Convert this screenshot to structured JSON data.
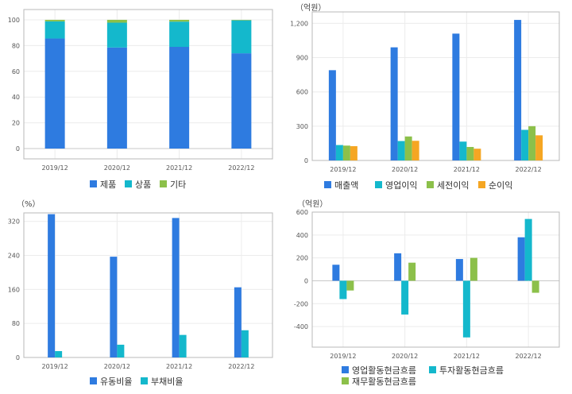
{
  "colors": {
    "blue": "#2e7be0",
    "cyan": "#14b8cc",
    "green": "#8cc04a",
    "orange": "#f5a623"
  },
  "chart_data": [
    {
      "type": "bar",
      "stacked": true,
      "unit": "",
      "categories": [
        "2019/12",
        "2020/12",
        "2021/12",
        "2022/12"
      ],
      "yticks": [
        "0",
        "20",
        "40",
        "60",
        "80",
        "100"
      ],
      "ylim": [
        -8,
        108
      ],
      "series": [
        {
          "name": "제품",
          "color": "blue",
          "values": [
            85.5,
            78.5,
            79,
            74
          ]
        },
        {
          "name": "상품",
          "color": "cyan",
          "values": [
            13.3,
            19.3,
            19.6,
            25.6
          ]
        },
        {
          "name": "기타",
          "color": "green",
          "values": [
            1.2,
            2.2,
            1.4,
            0.4
          ]
        }
      ]
    },
    {
      "type": "bar",
      "unit": "（억원）",
      "categories": [
        "2019/12",
        "2020/12",
        "2021/12",
        "2022/12"
      ],
      "yticks": [
        "0",
        "300",
        "600",
        "900",
        "1,200"
      ],
      "ylim": [
        0,
        1300
      ],
      "series": [
        {
          "name": "매출액",
          "color": "blue",
          "values": [
            790,
            990,
            1110,
            1230
          ]
        },
        {
          "name": "영업이익",
          "color": "cyan",
          "values": [
            135,
            170,
            165,
            268
          ]
        },
        {
          "name": "세전이익",
          "color": "green",
          "values": [
            130,
            210,
            118,
            300
          ]
        },
        {
          "name": "순이익",
          "color": "orange",
          "values": [
            125,
            172,
            103,
            220
          ]
        }
      ]
    },
    {
      "type": "bar",
      "unit": "（%）",
      "categories": [
        "2019/12",
        "2020/12",
        "2021/12",
        "2022/12"
      ],
      "yticks": [
        "0",
        "80",
        "160",
        "240",
        "320"
      ],
      "ylim": [
        0,
        340
      ],
      "series": [
        {
          "name": "유동비율",
          "color": "blue",
          "values": [
            337,
            237,
            328,
            165
          ]
        },
        {
          "name": "부채비율",
          "color": "cyan",
          "values": [
            15,
            30,
            53,
            64
          ]
        }
      ]
    },
    {
      "type": "bar",
      "unit": "（억원）",
      "categories": [
        "2019/12",
        "2020/12",
        "2021/12",
        "2022/12"
      ],
      "yticks": [
        "600",
        "400",
        "200",
        "0",
        "-200",
        "-400"
      ],
      "ylim": [
        -580,
        600
      ],
      "series": [
        {
          "name": "영업활동현금흐름",
          "color": "blue",
          "values": [
            140,
            240,
            190,
            380
          ]
        },
        {
          "name": "투자활동현금흐름",
          "color": "cyan",
          "values": [
            -160,
            -295,
            -495,
            540
          ]
        },
        {
          "name": "재무활동현금흐름",
          "color": "green",
          "values": [
            -85,
            158,
            200,
            -105
          ]
        }
      ]
    }
  ]
}
